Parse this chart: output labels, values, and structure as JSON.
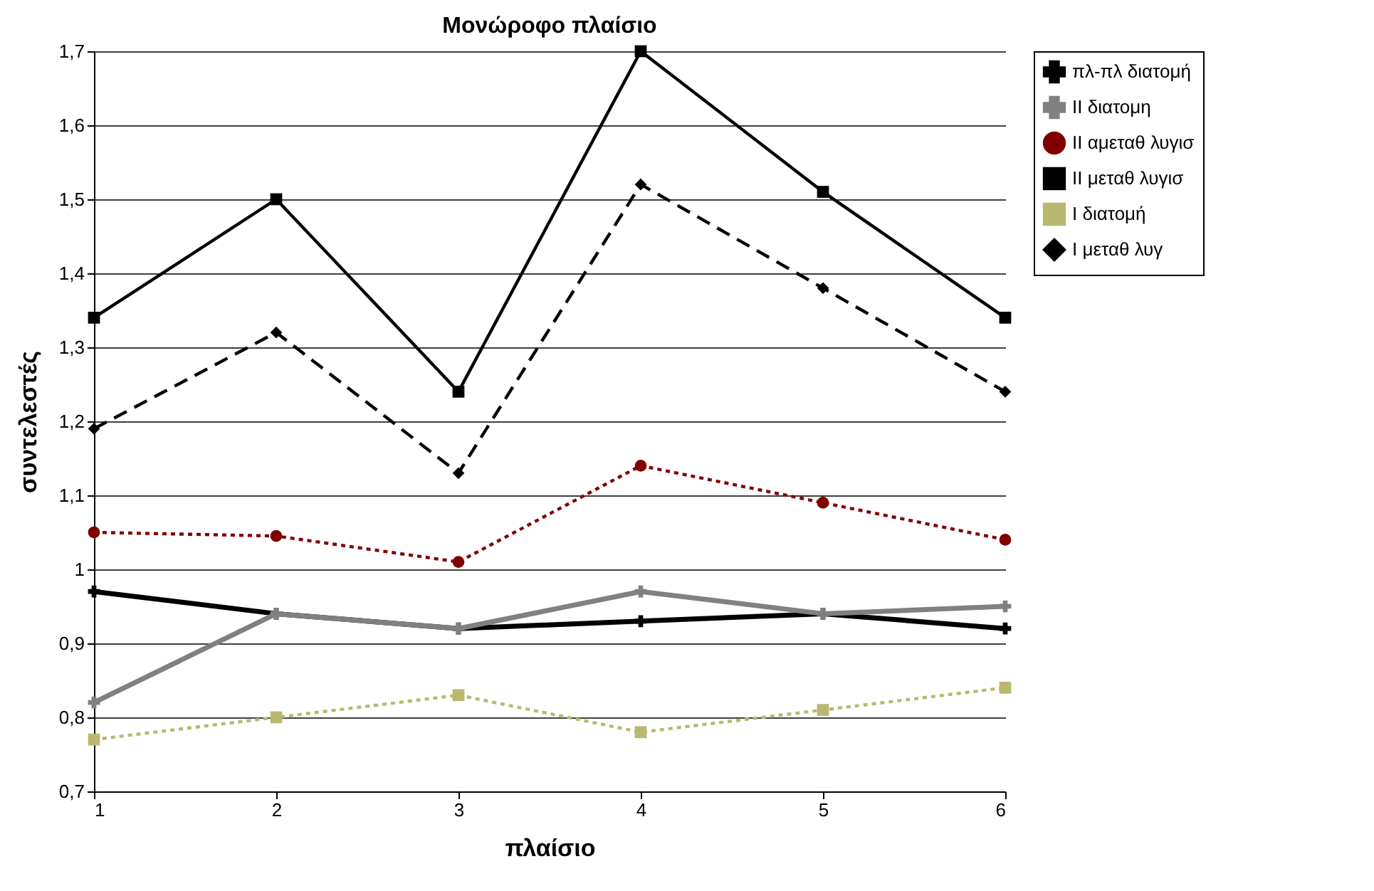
{
  "chart_data": {
    "type": "line",
    "title": "Μονώροφο πλαίσιο",
    "xlabel": "πλαίσιο",
    "ylabel": "συντελεστές",
    "x": [
      1,
      2,
      3,
      4,
      5,
      6
    ],
    "xlim": [
      1,
      6
    ],
    "xticks": [
      1,
      2,
      3,
      4,
      5,
      6
    ],
    "ylim": [
      0.7,
      1.7
    ],
    "yticks": [
      {
        "value": 0.7,
        "label": "0,7"
      },
      {
        "value": 0.8,
        "label": "0,8"
      },
      {
        "value": 0.9,
        "label": "0,9"
      },
      {
        "value": 1,
        "label": "1"
      },
      {
        "value": 1.1,
        "label": "1,1"
      },
      {
        "value": 1.2,
        "label": "1,2"
      },
      {
        "value": 1.3,
        "label": "1,3"
      },
      {
        "value": 1.4,
        "label": "1,4"
      },
      {
        "value": 1.5,
        "label": "1,5"
      },
      {
        "value": 1.6,
        "label": "1,6"
      },
      {
        "value": 1.7,
        "label": "1,7"
      }
    ],
    "grid": "y",
    "legend": "right",
    "series": [
      {
        "name": "πλ-πλ διατομή",
        "color": "#000000",
        "marker": "cross",
        "line_style": "solid",
        "values": [
          0.97,
          0.94,
          0.92,
          0.93,
          0.94,
          0.92
        ]
      },
      {
        "name": "ΙΙ διατομη",
        "color": "#808080",
        "marker": "cross",
        "line_style": "solid",
        "values": [
          0.82,
          0.94,
          0.92,
          0.97,
          0.94,
          0.95
        ]
      },
      {
        "name": "ΙΙ αμεταθ λυγισ",
        "color": "#800000",
        "marker": "circle",
        "line_style": "dotted",
        "values": [
          1.05,
          1.045,
          1.01,
          1.14,
          1.09,
          1.04
        ]
      },
      {
        "name": "ΙΙ μεταθ λυγισ",
        "color": "#000000",
        "marker": "square",
        "line_style": "solid",
        "values": [
          1.34,
          1.5,
          1.24,
          1.7,
          1.51,
          1.34
        ]
      },
      {
        "name": "Ι διατομή",
        "color": "#b8b870",
        "marker": "square",
        "line_style": "dotted",
        "values": [
          0.77,
          0.8,
          0.83,
          0.78,
          0.81,
          0.84
        ]
      },
      {
        "name": "Ι μεταθ λυγ",
        "color": "#000000",
        "marker": "diamond",
        "line_style": "dashed",
        "values": [
          1.19,
          1.32,
          1.13,
          1.52,
          1.38,
          1.24
        ]
      }
    ]
  }
}
